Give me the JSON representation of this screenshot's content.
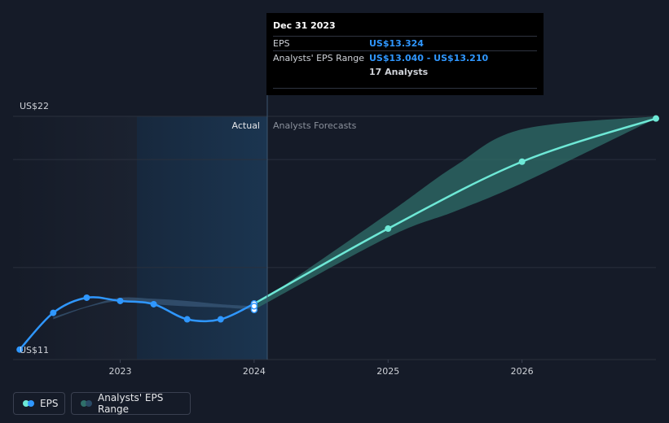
{
  "tooltip": {
    "date": "Dec 31 2023",
    "eps_label": "EPS",
    "eps_value": "US$13.324",
    "range_label": "Analysts' EPS Range",
    "range_value": "US$13.040 - US$13.210",
    "analysts": "17 Analysts"
  },
  "labels": {
    "actual": "Actual",
    "forecast": "Analysts Forecasts"
  },
  "legend": {
    "eps": "EPS",
    "range": "Analysts' EPS Range"
  },
  "colors": {
    "actual_line": "#2f97ff",
    "forecast_line": "#6ee8d6",
    "band": "#2f6f6a",
    "background": "#151b28"
  },
  "chart_data": {
    "type": "line",
    "ylim": [
      11,
      22
    ],
    "y_ticks": [
      "US$22",
      "US$11"
    ],
    "x_ticks": [
      "2023",
      "2024",
      "2025",
      "2026"
    ],
    "grid": true,
    "series": [
      {
        "name": "EPS",
        "kind": "actual",
        "points": [
          {
            "x": 2022.25,
            "y": 11.2
          },
          {
            "x": 2022.5,
            "y": 12.9
          },
          {
            "x": 2022.75,
            "y": 13.6
          },
          {
            "x": 2023.0,
            "y": 13.45
          },
          {
            "x": 2023.25,
            "y": 13.3
          },
          {
            "x": 2023.5,
            "y": 12.6
          },
          {
            "x": 2023.75,
            "y": 12.6
          },
          {
            "x": 2024.0,
            "y": 13.32
          }
        ]
      },
      {
        "name": "EPS",
        "kind": "forecast",
        "points": [
          {
            "x": 2024.0,
            "y": 13.32
          },
          {
            "x": 2025.0,
            "y": 16.8
          },
          {
            "x": 2026.0,
            "y": 19.9
          },
          {
            "x": 2027.0,
            "y": 21.9
          }
        ]
      }
    ],
    "actual_range": {
      "x": [
        2022.5,
        2022.75,
        2023.0,
        2023.25,
        2023.5,
        2023.75,
        2024.0
      ],
      "low": [
        12.6,
        13.15,
        13.45,
        13.3,
        13.2,
        13.15,
        13.04
      ],
      "high": [
        12.7,
        13.2,
        13.6,
        13.55,
        13.45,
        13.3,
        13.21
      ]
    },
    "forecast_range": {
      "x": [
        2024.0,
        2025.0,
        2025.5,
        2026.0,
        2027.0
      ],
      "low": [
        13.04,
        16.4,
        17.6,
        18.9,
        21.9
      ],
      "high": [
        13.21,
        17.5,
        19.7,
        21.4,
        22.0
      ]
    },
    "highlight_point": {
      "x": 2024.0,
      "values": [
        13.324,
        13.04,
        13.21
      ]
    }
  }
}
